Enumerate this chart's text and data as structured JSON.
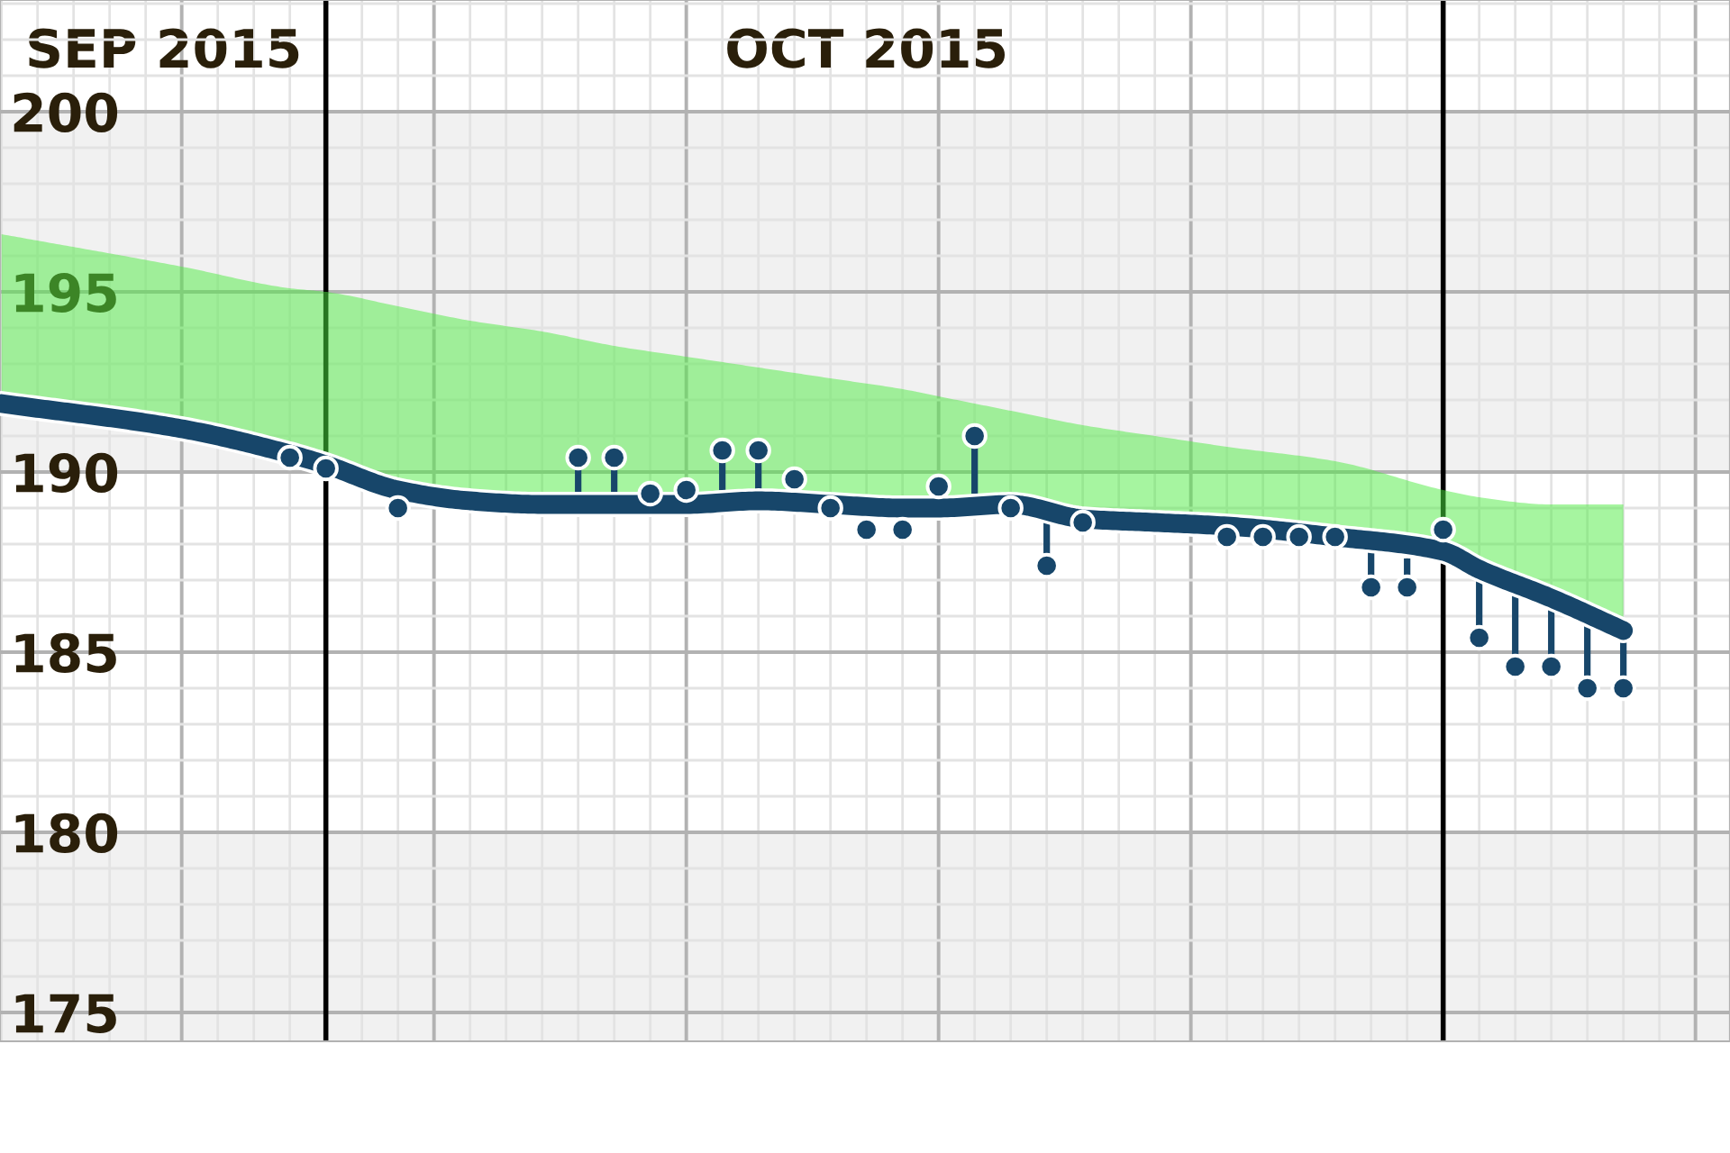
{
  "chart_data": {
    "type": "scatter",
    "xlim": [
      "2015-09-21T23:00",
      "2015-11-08T23:00"
    ],
    "xticks": [
      {
        "value": "2015-09-26T12:00",
        "label": "SEP 2015"
      },
      {
        "value": "2015-10-16",
        "label": "OCT 2015"
      }
    ],
    "ylim": [
      174.2,
      203.1
    ],
    "yticks": [
      175,
      180,
      185,
      190,
      195,
      200
    ],
    "grid": true,
    "bands": [
      {
        "axis": "y",
        "from": 190,
        "to": 200,
        "color": "#f1f1f1"
      },
      {
        "axis": "y",
        "from": 174.2,
        "to": 180,
        "color": "#f1f1f1"
      }
    ],
    "ref_lines": [
      {
        "axis": "x",
        "value": "2015-10-01",
        "color": "#000000"
      },
      {
        "axis": "x",
        "value": "2015-11-01",
        "color": "#000000"
      }
    ],
    "series": [
      {
        "type": "line",
        "color": "#17466a",
        "marker": "none",
        "x": [
          "2015-09-22",
          "2015-09-27",
          "2015-09-30",
          "2015-10-01",
          "2015-10-03",
          "2015-10-05",
          "2015-10-07",
          "2015-10-09",
          "2015-10-11",
          "2015-10-13",
          "2015-10-15",
          "2015-10-17",
          "2015-10-18",
          "2015-10-20",
          "2015-10-22",
          "2015-10-24",
          "2015-10-26",
          "2015-10-29",
          "2015-11-01",
          "2015-11-02",
          "2015-11-04",
          "2015-11-06"
        ],
        "values": [
          191.9,
          191.2,
          190.5,
          190.2,
          189.5,
          189.2,
          189.1,
          189.1,
          189.1,
          189.2,
          189.1,
          189.0,
          189.0,
          189.1,
          188.7,
          188.6,
          188.5,
          188.2,
          187.8,
          187.3,
          186.5,
          185.6
        ],
        "lower": [
          191.9,
          191.2,
          190.5,
          190.2,
          189.5,
          189.2,
          189.1,
          189.1,
          189.1,
          189.2,
          189.1,
          189.0,
          189.0,
          189.1,
          188.7,
          188.6,
          188.5,
          188.2,
          187.8,
          187.3,
          186.5,
          185.6
        ],
        "upper": [
          196.6,
          195.7,
          195.1,
          195.0,
          194.6,
          194.2,
          193.9,
          193.5,
          193.2,
          192.9,
          192.6,
          192.3,
          192.1,
          191.7,
          191.3,
          191.0,
          190.7,
          190.3,
          189.5,
          189.3,
          189.1,
          189.1
        ]
      },
      {
        "color": "#17466a",
        "marker": "circle",
        "x": [
          "2015-09-30",
          "2015-10-01",
          "2015-10-03",
          "2015-10-08",
          "2015-10-09",
          "2015-10-10",
          "2015-10-11",
          "2015-10-12",
          "2015-10-13",
          "2015-10-14",
          "2015-10-15",
          "2015-10-16",
          "2015-10-17",
          "2015-10-18",
          "2015-10-19",
          "2015-10-20",
          "2015-10-21",
          "2015-10-22",
          "2015-10-26",
          "2015-10-27",
          "2015-10-28",
          "2015-10-29",
          "2015-10-30",
          "2015-10-31",
          "2015-11-01",
          "2015-11-02",
          "2015-11-03",
          "2015-11-04",
          "2015-11-05",
          "2015-11-06"
        ],
        "values": [
          190.4,
          190.1,
          189.0,
          190.4,
          190.4,
          189.4,
          189.5,
          190.6,
          190.6,
          189.8,
          189.0,
          188.4,
          188.4,
          189.6,
          191.0,
          189.0,
          187.4,
          188.6,
          188.2,
          188.2,
          188.2,
          188.2,
          186.8,
          186.8,
          188.4,
          185.4,
          184.6,
          184.6,
          184.0,
          184.0
        ],
        "errors": [
          null,
          null,
          null,
          [
            189.4,
            190.4
          ],
          [
            189.4,
            190.4
          ],
          null,
          null,
          [
            189.5,
            190.6
          ],
          [
            189.5,
            190.6
          ],
          null,
          null,
          null,
          null,
          null,
          [
            189.4,
            191.0
          ],
          null,
          [
            187.4,
            188.6
          ],
          null,
          null,
          null,
          null,
          null,
          [
            186.8,
            187.8
          ],
          [
            186.8,
            187.6
          ],
          null,
          [
            185.4,
            187.0
          ],
          [
            184.6,
            186.6
          ],
          [
            184.6,
            186.2
          ],
          [
            184.0,
            185.8
          ],
          [
            184.0,
            185.3
          ]
        ]
      }
    ]
  }
}
